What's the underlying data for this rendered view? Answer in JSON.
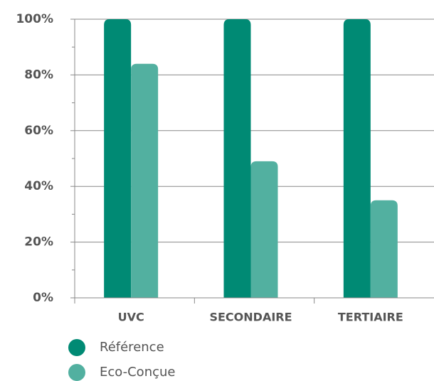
{
  "chart_data": {
    "type": "bar",
    "categories": [
      "UVC",
      "SECONDAIRE",
      "TERTIAIRE"
    ],
    "series": [
      {
        "name": "Référence",
        "color": "#008a74",
        "values": [
          100,
          100,
          100
        ]
      },
      {
        "name": "Eco-Conçue",
        "color": "#52b0a0",
        "values": [
          84,
          49,
          35
        ]
      }
    ],
    "ylim": [
      0,
      100
    ],
    "yticks": [
      {
        "value": 0,
        "label": "0%"
      },
      {
        "value": 20,
        "label": "20%"
      },
      {
        "value": 40,
        "label": "40%"
      },
      {
        "value": 60,
        "label": "60%"
      },
      {
        "value": 80,
        "label": "80%"
      },
      {
        "value": 100,
        "label": "100%"
      }
    ],
    "minor_yticks": [
      10,
      30,
      50,
      70,
      90
    ],
    "grid": true
  }
}
